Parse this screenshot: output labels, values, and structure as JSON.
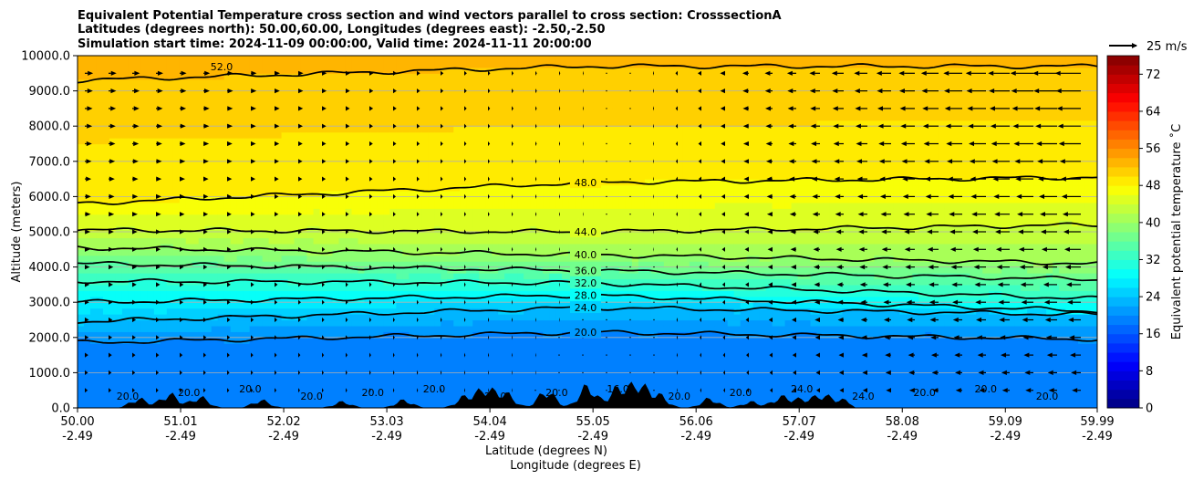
{
  "chart_data": {
    "type": "heatmap",
    "title_lines": [
      "Equivalent Potential Temperature cross section and wind vectors parallel to cross section: CrosssectionA",
      "Latitudes (degrees north): 50.00,60.00, Longitudes (degrees east): -2.50,-2.50",
      "Simulation start time: 2024-11-09 00:00:00, Valid time: 2024-11-11 20:00:00"
    ],
    "ylabel": "Altitude (meters)",
    "xlabel_lat": "Latitude (degrees N)",
    "xlabel_lon": "Longitude (degrees E)",
    "ylim": [
      0,
      10000
    ],
    "xlim": [
      50.0,
      59.99
    ],
    "y_ticks": [
      "0.0",
      "1000.0",
      "2000.0",
      "3000.0",
      "4000.0",
      "5000.0",
      "6000.0",
      "7000.0",
      "8000.0",
      "9000.0",
      "10000.0"
    ],
    "x_ticks": [
      {
        "lat": "50.00",
        "lon": "-2.49"
      },
      {
        "lat": "51.01",
        "lon": "-2.49"
      },
      {
        "lat": "52.02",
        "lon": "-2.49"
      },
      {
        "lat": "53.03",
        "lon": "-2.49"
      },
      {
        "lat": "54.04",
        "lon": "-2.49"
      },
      {
        "lat": "55.05",
        "lon": "-2.49"
      },
      {
        "lat": "56.06",
        "lon": "-2.49"
      },
      {
        "lat": "57.07",
        "lon": "-2.49"
      },
      {
        "lat": "58.08",
        "lon": "-2.49"
      },
      {
        "lat": "59.09",
        "lon": "-2.49"
      },
      {
        "lat": "59.99",
        "lon": "-2.49"
      }
    ],
    "colorbar": {
      "label": "Equivalent potential temperature ˚C",
      "range": [
        0,
        76
      ],
      "step": 2,
      "ticks": [
        "0",
        "8",
        "16",
        "24",
        "32",
        "40",
        "48",
        "56",
        "64",
        "72"
      ]
    },
    "wind_key": "25 m/s",
    "contours": [
      {
        "level": 20.0,
        "label": "20.0",
        "altitude_start": 1850,
        "altitude_mid": 2150,
        "altitude_end": 1950
      },
      {
        "level": 24.0,
        "label": "24.0",
        "altitude_start": 2450,
        "altitude_mid": 2850,
        "altitude_end": 2650
      },
      {
        "level": 28.0,
        "label": "28.0",
        "altitude_start": 3000,
        "altitude_mid": 3200,
        "altitude_end": 2750
      },
      {
        "level": 32.0,
        "label": "32.0",
        "altitude_start": 3600,
        "altitude_mid": 3550,
        "altitude_end": 3100
      },
      {
        "level": 36.0,
        "label": "36.0",
        "altitude_start": 4100,
        "altitude_mid": 3900,
        "altitude_end": 3650
      },
      {
        "level": 40.0,
        "label": "40.0",
        "altitude_start": 4550,
        "altitude_mid": 4350,
        "altitude_end": 4100
      },
      {
        "level": 44.0,
        "label": "44.0",
        "altitude_start": 5050,
        "altitude_mid": 5000,
        "altitude_end": 5200
      },
      {
        "level": 48.0,
        "label": "48.0",
        "altitude_start": 5800,
        "altitude_mid": 6400,
        "altitude_end": 6550
      },
      {
        "level": 52.0,
        "label": "52.0",
        "altitude_start": 9300,
        "altitude_mid": 9700,
        "altitude_end": 9700
      }
    ],
    "surface_labels": [
      "20.0",
      "20.0",
      "20.0",
      "20.0",
      "20.0",
      "20.0",
      "20.0",
      "20.0",
      "16.0",
      "20.0",
      "20.0",
      "24.0",
      "24.0",
      "20.0",
      "20.0",
      "20.0"
    ]
  }
}
